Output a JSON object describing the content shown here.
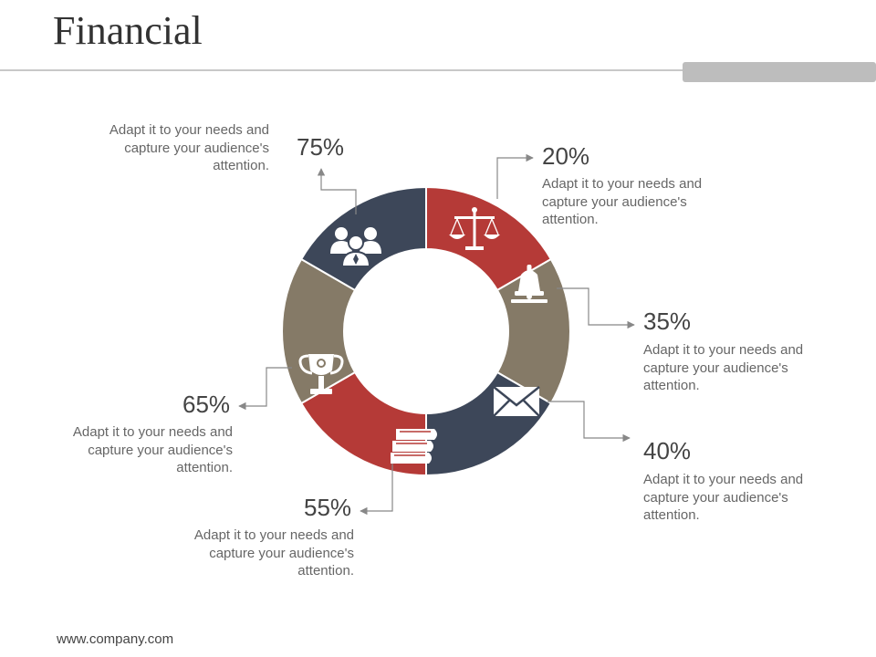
{
  "page": {
    "title": "Financial",
    "footer": "www.company.com"
  },
  "colors": {
    "red": "#b53a37",
    "taupe": "#857a67",
    "navy": "#3d4759",
    "line": "#888888"
  },
  "segments": [
    {
      "id": "s20",
      "value": "20%",
      "text": "Adapt it to your needs and capture your audience's attention.",
      "icon": "balance-scale-icon",
      "color": "#b53a37"
    },
    {
      "id": "s35",
      "value": "35%",
      "text": "Adapt it to your needs and capture your audience's attention.",
      "icon": "bell-icon",
      "color": "#857a67"
    },
    {
      "id": "s40",
      "value": "40%",
      "text": "Adapt it to your needs and capture your audience's attention.",
      "icon": "envelope-icon",
      "color": "#3d4759"
    },
    {
      "id": "s55",
      "value": "55%",
      "text": "Adapt it to your needs and capture your audience's attention.",
      "icon": "books-icon",
      "color": "#b53a37"
    },
    {
      "id": "s65",
      "value": "65%",
      "text": "Adapt it to your needs and capture your audience's attention.",
      "icon": "trophy-icon",
      "color": "#857a67"
    },
    {
      "id": "s75",
      "value": "75%",
      "text": "Adapt it to your needs and capture your audience's attention.",
      "icon": "team-icon",
      "color": "#3d4759"
    }
  ]
}
